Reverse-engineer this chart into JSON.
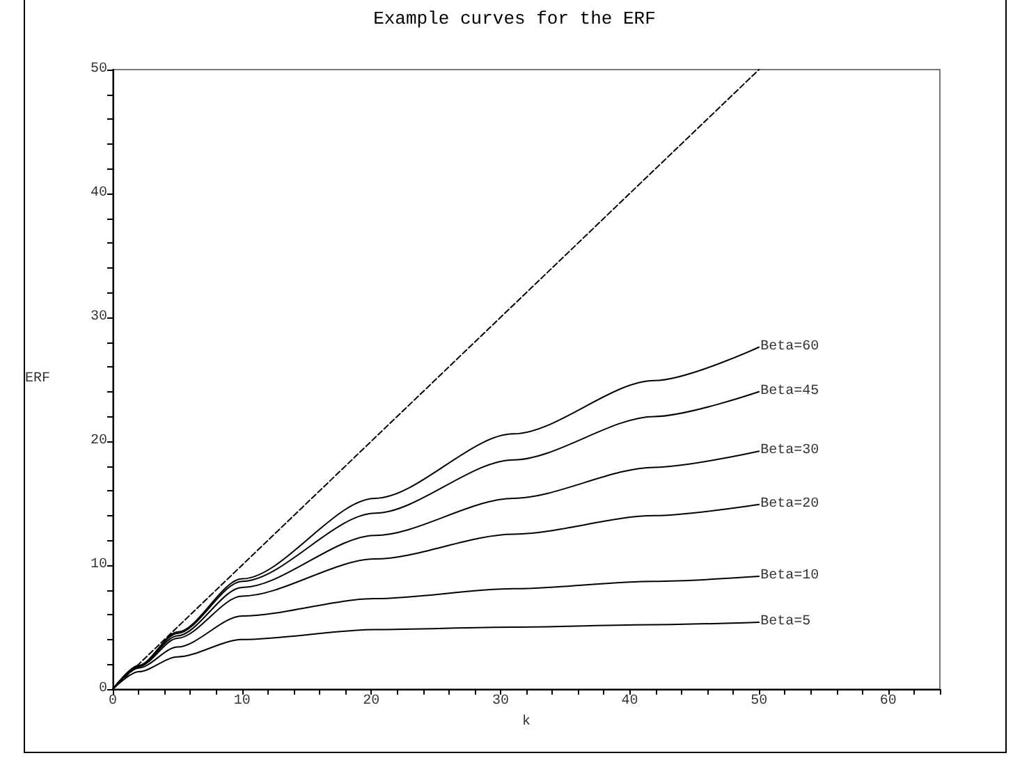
{
  "chart_data": {
    "type": "line",
    "title": "Example curves for the ERF",
    "xlabel": "k",
    "ylabel": "ERF",
    "xlim": [
      0,
      64
    ],
    "ylim": [
      0,
      50
    ],
    "xticks": [
      0,
      {
        "value": 2,
        "label": null
      },
      {
        "value": 4,
        "label": null
      },
      {
        "value": 6,
        "label": null
      },
      {
        "value": 8,
        "label": null
      },
      10,
      {
        "value": 12,
        "label": null
      },
      {
        "value": 14,
        "label": null
      },
      {
        "value": 16,
        "label": null
      },
      {
        "value": 18,
        "label": null
      },
      20,
      {
        "value": 22,
        "label": null
      },
      {
        "value": 24,
        "label": null
      },
      {
        "value": 26,
        "label": null
      },
      {
        "value": 28,
        "label": null
      },
      30,
      {
        "value": 32,
        "label": null
      },
      {
        "value": 34,
        "label": null
      },
      {
        "value": 36,
        "label": null
      },
      {
        "value": 38,
        "label": null
      },
      40,
      {
        "value": 42,
        "label": null
      },
      {
        "value": 44,
        "label": null
      },
      {
        "value": 46,
        "label": null
      },
      {
        "value": 48,
        "label": null
      },
      50,
      {
        "value": 52,
        "label": null
      },
      {
        "value": 54,
        "label": null
      },
      {
        "value": 56,
        "label": null
      },
      {
        "value": 58,
        "label": null
      },
      60,
      {
        "value": 62,
        "label": null
      },
      {
        "value": 64,
        "label": null
      }
    ],
    "yticks": [
      0,
      {
        "value": 2,
        "label": null
      },
      {
        "value": 4,
        "label": null
      },
      {
        "value": 6,
        "label": null
      },
      {
        "value": 8,
        "label": null
      },
      10,
      {
        "value": 12,
        "label": null
      },
      {
        "value": 14,
        "label": null
      },
      {
        "value": 16,
        "label": null
      },
      {
        "value": 18,
        "label": null
      },
      20,
      {
        "value": 22,
        "label": null
      },
      {
        "value": 24,
        "label": null
      },
      {
        "value": 26,
        "label": null
      },
      {
        "value": 28,
        "label": null
      },
      30,
      {
        "value": 32,
        "label": null
      },
      {
        "value": 34,
        "label": null
      },
      {
        "value": 36,
        "label": null
      },
      {
        "value": 38,
        "label": null
      },
      40,
      {
        "value": 42,
        "label": null
      },
      {
        "value": 44,
        "label": null
      },
      {
        "value": 46,
        "label": null
      },
      {
        "value": 48,
        "label": null
      },
      50
    ],
    "grid": false,
    "legend": false,
    "marker": "none",
    "series": [
      {
        "color": "#000000",
        "line_style": "dashed",
        "x": [
          0,
          50
        ],
        "values": [
          0,
          50
        ]
      },
      {
        "name": "Beta=60",
        "color": "#000000",
        "line_style": "solid",
        "x": [
          0,
          2,
          5,
          10,
          20.3,
          31,
          41.9,
          50
        ],
        "values": [
          0,
          1.9,
          4.6,
          8.9,
          15.4,
          20.6,
          24.9,
          27.6
        ]
      },
      {
        "name": "Beta=45",
        "color": "#000000",
        "line_style": "solid",
        "x": [
          0,
          2,
          5,
          10,
          20.3,
          31,
          41.9,
          50
        ],
        "values": [
          0,
          1.9,
          4.5,
          8.7,
          14.2,
          18.5,
          22.0,
          24.0
        ]
      },
      {
        "name": "Beta=30",
        "color": "#000000",
        "line_style": "solid",
        "x": [
          0,
          2,
          5,
          10,
          20.3,
          31,
          41.9,
          50
        ],
        "values": [
          0,
          1.9,
          4.3,
          8.2,
          12.4,
          15.4,
          17.9,
          19.2
        ]
      },
      {
        "name": "Beta=20",
        "color": "#000000",
        "line_style": "solid",
        "x": [
          0,
          2,
          5,
          10,
          20.3,
          31,
          41.9,
          50
        ],
        "values": [
          0,
          1.8,
          4.1,
          7.5,
          10.5,
          12.5,
          14.0,
          14.9
        ]
      },
      {
        "name": "Beta=10",
        "color": "#000000",
        "line_style": "solid",
        "x": [
          0,
          2,
          5,
          10,
          20.3,
          31,
          41.9,
          50
        ],
        "values": [
          0,
          1.7,
          3.4,
          5.9,
          7.3,
          8.1,
          8.7,
          9.1
        ]
      },
      {
        "name": "Beta=5",
        "color": "#000000",
        "line_style": "solid",
        "x": [
          0,
          2,
          5,
          10,
          20.3,
          31,
          41.9,
          50
        ],
        "values": [
          0,
          1.4,
          2.6,
          4.0,
          4.8,
          5.0,
          5.2,
          5.4
        ]
      }
    ]
  }
}
